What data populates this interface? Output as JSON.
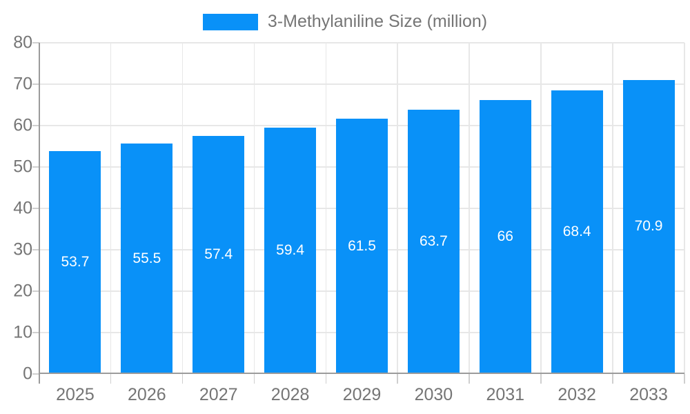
{
  "chart_data": {
    "type": "bar",
    "title": "",
    "legend": {
      "label": "3-Methylaniline Size (million)",
      "position": "top"
    },
    "categories": [
      "2025",
      "2026",
      "2027",
      "2028",
      "2029",
      "2030",
      "2031",
      "2032",
      "2033"
    ],
    "series": [
      {
        "name": "3-Methylaniline Size (million)",
        "values": [
          53.7,
          55.5,
          57.4,
          59.4,
          61.5,
          63.7,
          66,
          68.4,
          70.9
        ],
        "value_labels": [
          "53.7",
          "55.5",
          "57.4",
          "59.4",
          "61.5",
          "63.7",
          "66",
          "68.4",
          "70.9"
        ]
      }
    ],
    "xlabel": "",
    "ylabel": "",
    "ylim": [
      0,
      80
    ],
    "ytick_step": 10,
    "ytick_labels": [
      "0",
      "10",
      "20",
      "30",
      "40",
      "50",
      "60",
      "70",
      "80"
    ],
    "grid": true,
    "value_label_position": "inside-center",
    "colors": {
      "bar": "#0991f8",
      "bar_label_text": "#ffffff",
      "axis_text": "#757575",
      "grid_line": "#e7e7e7",
      "axis_line": "#9b9b9b",
      "tick_line": "#cfcfcf",
      "background": "#ffffff"
    }
  }
}
